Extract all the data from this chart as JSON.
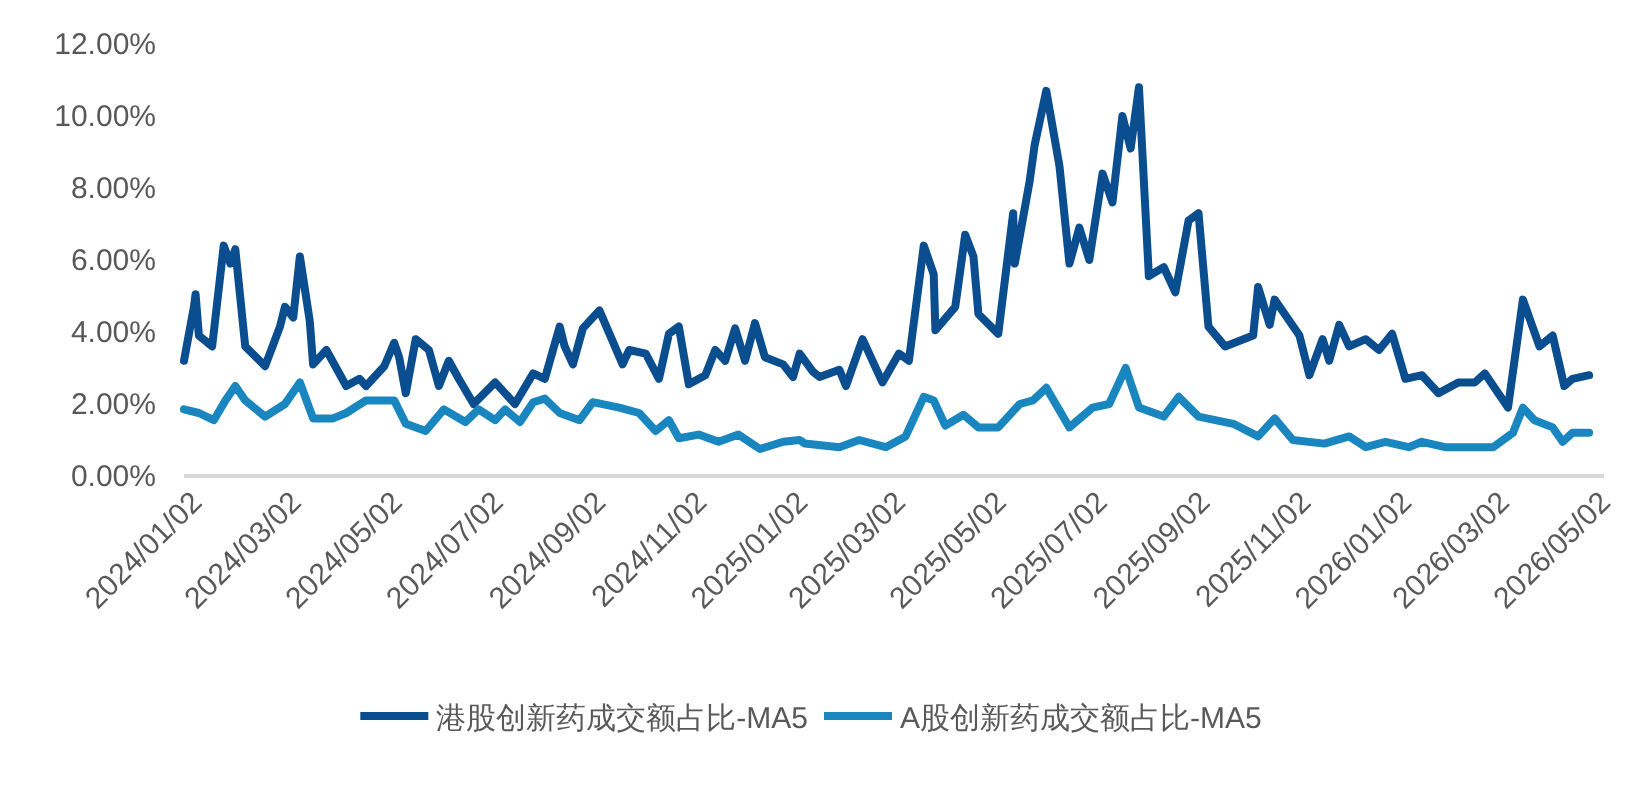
{
  "chart_data": {
    "type": "line",
    "xlim": [
      "2023-12-26",
      "2026-05-02"
    ],
    "xticks": [
      {
        "value": "2024-01-02",
        "label": "2024/01/02"
      },
      {
        "value": "2024-03-02",
        "label": "2024/03/02"
      },
      {
        "value": "2024-05-02",
        "label": "2024/05/02"
      },
      {
        "value": "2024-07-02",
        "label": "2024/07/02"
      },
      {
        "value": "2024-09-02",
        "label": "2024/09/02"
      },
      {
        "value": "2024-11-02",
        "label": "2024/11/02"
      },
      {
        "value": "2025-01-02",
        "label": "2025/01/02"
      },
      {
        "value": "2025-03-02",
        "label": "2025/03/02"
      },
      {
        "value": "2025-05-02",
        "label": "2025/05/02"
      },
      {
        "value": "2025-07-02",
        "label": "2025/07/02"
      },
      {
        "value": "2025-09-02",
        "label": "2025/09/02"
      },
      {
        "value": "2025-11-02",
        "label": "2025/11/02"
      },
      {
        "value": "2026-01-02",
        "label": "2026/01/02"
      },
      {
        "value": "2026-03-02",
        "label": "2026/03/02"
      },
      {
        "value": "2026-05-02",
        "label": "2026/05/02"
      }
    ],
    "ylim": [
      0,
      12
    ],
    "yticks": [
      {
        "value": 0,
        "label": "0.00%"
      },
      {
        "value": 2,
        "label": "2.00%"
      },
      {
        "value": 4,
        "label": "4.00%"
      },
      {
        "value": 6,
        "label": "6.00%"
      },
      {
        "value": 8,
        "label": "8.00%"
      },
      {
        "value": 10,
        "label": "10.00%"
      },
      {
        "value": 12,
        "label": "12.00%"
      }
    ],
    "legend": "bottom",
    "series": [
      {
        "name": "港股创新药成交额占比-MA5",
        "color": "#0b4e8f",
        "x": [
          "2023-12-26",
          "2024-01-01",
          "2024-01-02",
          "2024-01-04",
          "2024-01-12",
          "2024-01-19",
          "2024-01-23",
          "2024-01-26",
          "2024-02-01",
          "2024-02-13",
          "2024-02-22",
          "2024-02-25",
          "2024-03-01",
          "2024-03-05",
          "2024-03-11",
          "2024-03-13",
          "2024-03-21",
          "2024-04-02",
          "2024-04-10",
          "2024-04-14",
          "2024-04-25",
          "2024-05-01",
          "2024-05-04",
          "2024-05-08",
          "2024-05-14",
          "2024-05-22",
          "2024-05-28",
          "2024-06-03",
          "2024-06-09",
          "2024-06-18",
          "2024-07-01",
          "2024-07-13",
          "2024-07-24",
          "2024-07-31",
          "2024-08-09",
          "2024-08-12",
          "2024-08-17",
          "2024-08-23",
          "2024-09-02",
          "2024-09-16",
          "2024-09-20",
          "2024-09-30",
          "2024-10-08",
          "2024-10-14",
          "2024-10-20",
          "2024-10-26",
          "2024-11-05",
          "2024-11-11",
          "2024-11-17",
          "2024-11-23",
          "2024-11-29",
          "2024-12-05",
          "2024-12-11",
          "2024-12-22",
          "2024-12-28",
          "2025-01-01",
          "2025-01-09",
          "2025-01-13",
          "2025-01-25",
          "2025-01-29",
          "2025-02-08",
          "2025-02-20",
          "2025-03-02",
          "2025-03-08",
          "2025-03-17",
          "2025-03-23",
          "2025-03-24",
          "2025-04-05",
          "2025-04-11",
          "2025-04-16",
          "2025-04-19",
          "2025-05-01",
          "2025-05-10",
          "2025-05-11",
          "2025-05-20",
          "2025-05-23",
          "2025-05-30",
          "2025-06-07",
          "2025-06-13",
          "2025-06-19",
          "2025-06-25",
          "2025-07-03",
          "2025-07-09",
          "2025-07-15",
          "2025-07-20",
          "2025-07-25",
          "2025-07-31",
          "2025-08-09",
          "2025-08-16",
          "2025-08-24",
          "2025-08-30",
          "2025-09-05",
          "2025-09-15",
          "2025-10-02",
          "2025-10-05",
          "2025-10-12",
          "2025-10-15",
          "2025-10-30",
          "2025-11-05",
          "2025-11-13",
          "2025-11-17",
          "2025-11-23",
          "2025-11-29",
          "2025-12-09",
          "2025-12-17",
          "2025-12-25",
          "2026-01-02",
          "2026-01-12",
          "2026-01-22",
          "2026-02-03",
          "2026-02-13",
          "2026-02-19",
          "2026-03-05",
          "2026-03-14",
          "2026-03-24",
          "2026-04-01",
          "2026-04-08",
          "2026-04-13",
          "2026-04-23"
        ],
        "values": [
          3.2,
          4.7,
          5.05,
          3.9,
          3.6,
          6.4,
          5.9,
          6.3,
          3.6,
          3.05,
          4.15,
          4.7,
          4.4,
          6.1,
          4.3,
          3.1,
          3.5,
          2.5,
          2.7,
          2.5,
          3.05,
          3.7,
          3.3,
          2.3,
          3.8,
          3.5,
          2.5,
          3.2,
          2.7,
          2.0,
          2.6,
          2.0,
          2.85,
          2.7,
          4.15,
          3.6,
          3.1,
          4.1,
          4.6,
          3.1,
          3.5,
          3.4,
          2.7,
          3.95,
          4.15,
          2.55,
          2.8,
          3.5,
          3.2,
          4.1,
          3.2,
          4.25,
          3.3,
          3.1,
          2.75,
          3.4,
          2.9,
          2.75,
          2.95,
          2.5,
          3.8,
          2.6,
          3.4,
          3.2,
          6.4,
          5.6,
          4.05,
          4.7,
          6.7,
          6.1,
          4.5,
          3.95,
          7.3,
          5.9,
          8.2,
          9.2,
          10.7,
          8.6,
          5.9,
          6.9,
          6.0,
          8.4,
          7.6,
          10.0,
          9.1,
          10.8,
          5.55,
          5.8,
          5.1,
          7.1,
          7.3,
          4.15,
          3.6,
          3.9,
          5.25,
          4.2,
          4.9,
          3.9,
          2.8,
          3.8,
          3.2,
          4.2,
          3.6,
          3.8,
          3.5,
          3.95,
          2.7,
          2.8,
          2.3,
          2.6,
          2.6,
          2.85,
          1.9,
          4.9,
          3.6,
          3.9,
          2.5,
          2.7,
          2.8
        ]
      },
      {
        "name": "A股创新药成交额占比-MA5",
        "color": "#1a86bf",
        "x": [
          "2023-12-26",
          "2024-01-04",
          "2024-01-13",
          "2024-01-20",
          "2024-01-26",
          "2024-02-01",
          "2024-02-13",
          "2024-02-25",
          "2024-03-05",
          "2024-03-13",
          "2024-03-25",
          "2024-04-02",
          "2024-04-14",
          "2024-05-01",
          "2024-05-08",
          "2024-05-20",
          "2024-05-31",
          "2024-06-13",
          "2024-06-21",
          "2024-07-01",
          "2024-07-07",
          "2024-07-16",
          "2024-07-24",
          "2024-07-31",
          "2024-08-09",
          "2024-08-21",
          "2024-08-29",
          "2024-09-14",
          "2024-09-26",
          "2024-10-06",
          "2024-10-14",
          "2024-10-20",
          "2024-11-01",
          "2024-11-13",
          "2024-11-25",
          "2024-12-08",
          "2024-12-22",
          "2025-01-01",
          "2025-01-04",
          "2025-01-25",
          "2025-02-06",
          "2025-02-22",
          "2025-03-06",
          "2025-03-17",
          "2025-03-23",
          "2025-03-30",
          "2025-04-10",
          "2025-04-19",
          "2025-05-01",
          "2025-05-14",
          "2025-05-22",
          "2025-05-30",
          "2025-06-13",
          "2025-06-27",
          "2025-07-07",
          "2025-07-17",
          "2025-07-25",
          "2025-08-09",
          "2025-08-18",
          "2025-08-30",
          "2025-09-20",
          "2025-10-05",
          "2025-10-15",
          "2025-10-26",
          "2025-11-14",
          "2025-11-29",
          "2025-12-09",
          "2025-12-21",
          "2026-01-04",
          "2026-01-12",
          "2026-01-26",
          "2026-02-24",
          "2026-03-08",
          "2026-03-14",
          "2026-03-21",
          "2026-04-01",
          "2026-04-07",
          "2026-04-13",
          "2026-04-23"
        ],
        "values": [
          1.85,
          1.75,
          1.55,
          2.1,
          2.5,
          2.1,
          1.65,
          2.0,
          2.6,
          1.6,
          1.6,
          1.75,
          2.1,
          2.1,
          1.45,
          1.25,
          1.85,
          1.5,
          1.85,
          1.55,
          1.85,
          1.5,
          2.05,
          2.15,
          1.75,
          1.55,
          2.05,
          1.9,
          1.75,
          1.25,
          1.55,
          1.05,
          1.15,
          0.95,
          1.15,
          0.75,
          0.95,
          1.0,
          0.9,
          0.8,
          1.0,
          0.8,
          1.1,
          2.2,
          2.1,
          1.4,
          1.7,
          1.35,
          1.35,
          2.0,
          2.1,
          2.45,
          1.35,
          1.9,
          2.0,
          3.0,
          1.9,
          1.65,
          2.2,
          1.65,
          1.45,
          1.1,
          1.6,
          1.0,
          0.9,
          1.1,
          0.8,
          0.95,
          0.8,
          0.95,
          0.8,
          0.8,
          1.2,
          1.9,
          1.55,
          1.35,
          0.95,
          1.2,
          1.2
        ]
      }
    ]
  }
}
